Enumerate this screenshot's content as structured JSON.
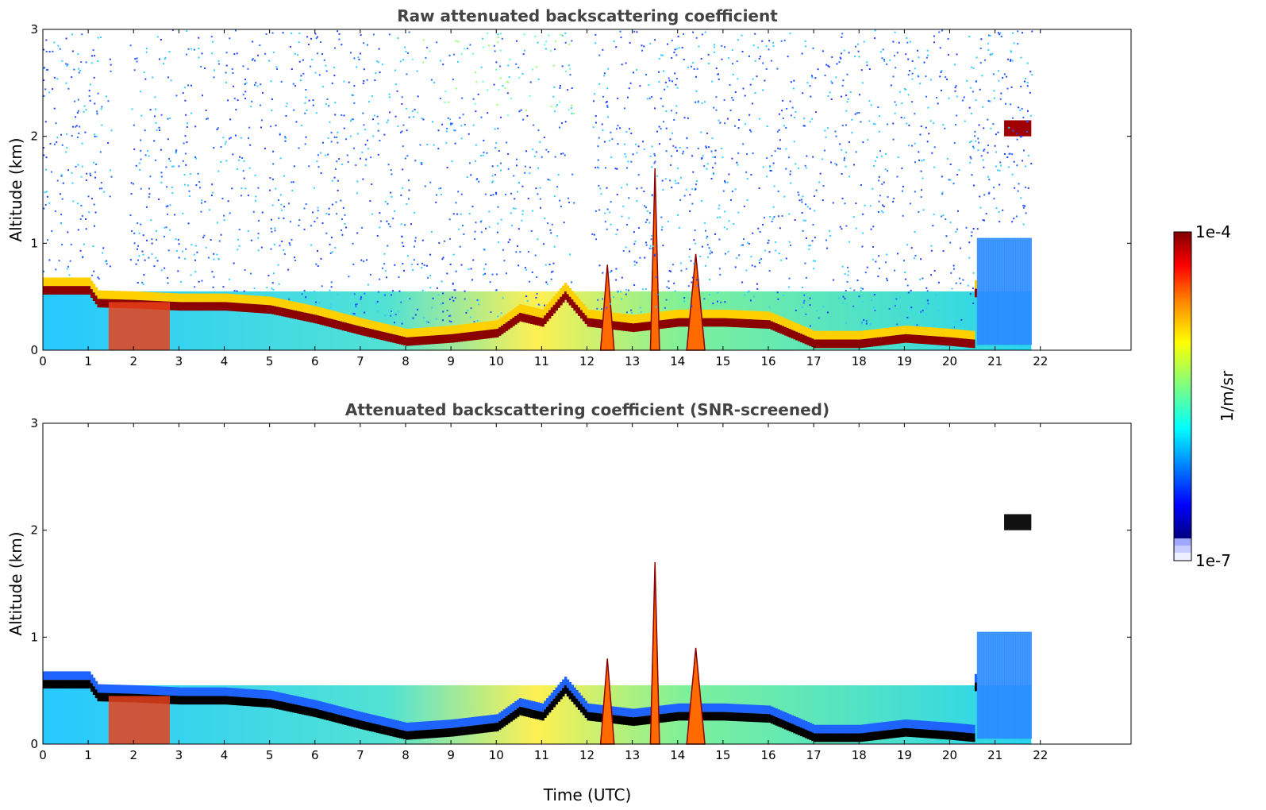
{
  "chart_data": [
    {
      "type": "heatmap",
      "title": "Raw attenuated backscattering coefficient",
      "xlabel": "",
      "ylabel": "Altitude (km)",
      "xlim": [
        0,
        24
      ],
      "ylim": [
        0,
        3
      ],
      "x_ticks": [
        "0",
        "1",
        "2",
        "3",
        "4",
        "5",
        "6",
        "7",
        "8",
        "9",
        "10",
        "11",
        "12",
        "13",
        "14",
        "15",
        "16",
        "17",
        "18",
        "19",
        "20",
        "21",
        "22"
      ],
      "y_ticks": [
        "0",
        "1",
        "2",
        "3"
      ],
      "data_end_time": 21.8,
      "boundary_layer_top_km": [
        [
          0,
          0.6
        ],
        [
          1,
          0.6
        ],
        [
          1.2,
          0.48
        ],
        [
          2,
          0.47
        ],
        [
          3,
          0.45
        ],
        [
          4,
          0.45
        ],
        [
          5,
          0.42
        ],
        [
          6,
          0.33
        ],
        [
          7,
          0.22
        ],
        [
          8,
          0.12
        ],
        [
          9,
          0.15
        ],
        [
          10,
          0.2
        ],
        [
          10.5,
          0.35
        ],
        [
          11,
          0.3
        ],
        [
          11.5,
          0.55
        ],
        [
          12,
          0.3
        ],
        [
          13,
          0.25
        ],
        [
          14,
          0.3
        ],
        [
          15,
          0.3
        ],
        [
          16,
          0.28
        ],
        [
          17,
          0.1
        ],
        [
          18,
          0.1
        ],
        [
          19,
          0.15
        ],
        [
          20,
          0.12
        ],
        [
          20.5,
          0.1
        ],
        [
          20.6,
          1.05
        ],
        [
          21.8,
          1.05
        ]
      ],
      "features": [
        {
          "type": "cloud_layer",
          "time": [
            21.2,
            21.8
          ],
          "altitude_km": [
            2.0,
            2.15
          ]
        },
        {
          "type": "convective_plume",
          "time": [
            13.4,
            13.6
          ],
          "altitude_km": [
            0,
            1.7
          ]
        },
        {
          "type": "convective_plume",
          "time": [
            14.2,
            14.6
          ],
          "altitude_km": [
            0,
            0.9
          ]
        },
        {
          "type": "convective_plume",
          "time": [
            12.3,
            12.6
          ],
          "altitude_km": [
            0,
            0.8
          ]
        }
      ]
    },
    {
      "type": "heatmap",
      "title": "Attenuated backscattering coefficient (SNR-screened)",
      "xlabel": "Time (UTC)",
      "ylabel": "Altitude (km)",
      "xlim": [
        0,
        24
      ],
      "ylim": [
        0,
        3
      ],
      "x_ticks": [
        "0",
        "1",
        "2",
        "3",
        "4",
        "5",
        "6",
        "7",
        "8",
        "9",
        "10",
        "11",
        "12",
        "13",
        "14",
        "15",
        "16",
        "17",
        "18",
        "19",
        "20",
        "21",
        "22"
      ],
      "y_ticks": [
        "0",
        "1",
        "2",
        "3"
      ],
      "data_end_time": 21.8
    }
  ],
  "colorbar": {
    "max_label": "1e-4",
    "min_label": "1e-7",
    "units": "1/m/sr",
    "colormap": [
      "#00007f",
      "#0000ff",
      "#007fff",
      "#00ffff",
      "#7fff7f",
      "#ffff00",
      "#ff7f00",
      "#ff0000",
      "#7f0000"
    ],
    "floor_colors": [
      "#eef0ff",
      "#c8ccff",
      "#9fa7ff"
    ]
  }
}
